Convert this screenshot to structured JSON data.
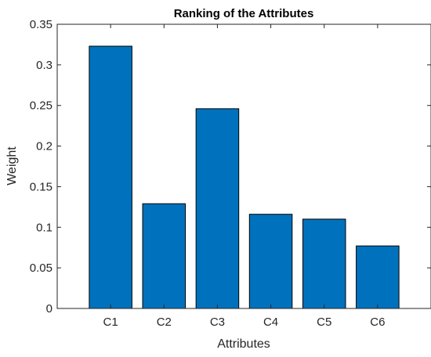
{
  "chart_data": {
    "type": "bar",
    "title": "Ranking of the Attributes",
    "xlabel": "Attributes",
    "ylabel": "Weight",
    "categories": [
      "C1",
      "C2",
      "C3",
      "C4",
      "C5",
      "C6"
    ],
    "values": [
      0.323,
      0.129,
      0.246,
      0.116,
      0.11,
      0.077
    ],
    "ylim": [
      0,
      0.35
    ],
    "yticks": [
      0,
      0.05,
      0.1,
      0.15,
      0.2,
      0.25,
      0.3,
      0.35
    ],
    "ytick_labels": [
      "0",
      "0.05",
      "0.1",
      "0.15",
      "0.2",
      "0.25",
      "0.3",
      "0.35"
    ],
    "grid": false,
    "legend": "none",
    "bar_color": "#0072bd",
    "axis_color": "#262626"
  }
}
